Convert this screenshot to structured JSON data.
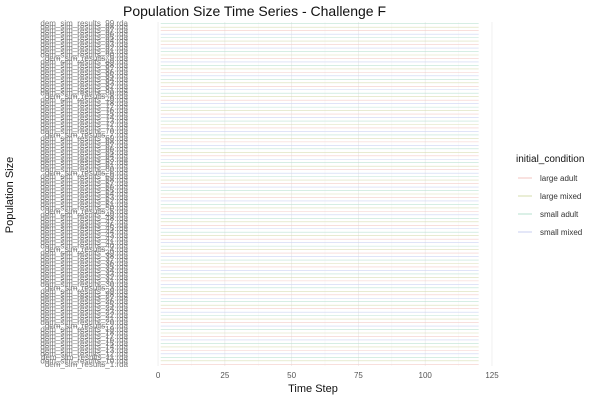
{
  "chart_data": {
    "type": "line",
    "title": "Population Size Time Series - Challenge F",
    "xlabel": "Time Step",
    "ylabel": "Population Size",
    "xlim": [
      -9,
      125
    ],
    "x_ticks": [
      "0",
      "25",
      "50",
      "75",
      "100",
      "125"
    ],
    "x_tick_values": [
      0,
      25,
      50,
      75,
      100,
      125
    ],
    "y_categories": [
      "dem_sim_results_1.rda",
      "dem_sim_results_10.rda",
      "dem_sim_results_11.rda",
      "dem_sim_results_12.rda",
      "dem_sim_results_13.rda",
      "dem_sim_results_14.rda",
      "dem_sim_results_15.rda",
      "dem_sim_results_16.rda",
      "dem_sim_results_17.rda",
      "dem_sim_results_18.rda",
      "dem_sim_results_19.rda",
      "dem_sim_results_2.rda",
      "dem_sim_results_20.rda",
      "dem_sim_results_21.rda",
      "dem_sim_results_22.rda",
      "dem_sim_results_23.rda",
      "dem_sim_results_24.rda",
      "dem_sim_results_25.rda",
      "dem_sim_results_26.rda",
      "dem_sim_results_27.rda",
      "dem_sim_results_28.rda",
      "dem_sim_results_29.rda",
      "dem_sim_results_3.rda",
      "dem_sim_results_30.rda",
      "dem_sim_results_31.rda",
      "dem_sim_results_32.rda",
      "dem_sim_results_33.rda",
      "dem_sim_results_34.rda",
      "dem_sim_results_35.rda",
      "dem_sim_results_36.rda",
      "dem_sim_results_37.rda",
      "dem_sim_results_38.rda",
      "dem_sim_results_39.rda",
      "dem_sim_results_4.rda",
      "dem_sim_results_40.rda",
      "dem_sim_results_41.rda",
      "dem_sim_results_42.rda",
      "dem_sim_results_43.rda",
      "dem_sim_results_44.rda",
      "dem_sim_results_45.rda",
      "dem_sim_results_46.rda",
      "dem_sim_results_47.rda",
      "dem_sim_results_48.rda",
      "dem_sim_results_49.rda",
      "dem_sim_results_5.rda",
      "dem_sim_results_50.rda",
      "dem_sim_results_51.rda",
      "dem_sim_results_52.rda",
      "dem_sim_results_53.rda",
      "dem_sim_results_54.rda",
      "dem_sim_results_55.rda",
      "dem_sim_results_56.rda",
      "dem_sim_results_57.rda",
      "dem_sim_results_58.rda",
      "dem_sim_results_59.rda",
      "dem_sim_results_6.rda",
      "dem_sim_results_60.rda",
      "dem_sim_results_61.rda",
      "dem_sim_results_62.rda",
      "dem_sim_results_63.rda",
      "dem_sim_results_64.rda",
      "dem_sim_results_65.rda",
      "dem_sim_results_66.rda",
      "dem_sim_results_67.rda",
      "dem_sim_results_68.rda",
      "dem_sim_results_69.rda",
      "dem_sim_results_7.rda",
      "dem_sim_results_70.rda",
      "dem_sim_results_71.rda",
      "dem_sim_results_72.rda",
      "dem_sim_results_73.rda",
      "dem_sim_results_74.rda",
      "dem_sim_results_75.rda",
      "dem_sim_results_76.rda",
      "dem_sim_results_77.rda",
      "dem_sim_results_78.rda",
      "dem_sim_results_79.rda",
      "dem_sim_results_8.rda",
      "dem_sim_results_80.rda",
      "dem_sim_results_81.rda",
      "dem_sim_results_82.rda",
      "dem_sim_results_83.rda",
      "dem_sim_results_84.rda",
      "dem_sim_results_85.rda",
      "dem_sim_results_86.rda",
      "dem_sim_results_87.rda",
      "dem_sim_results_88.rda",
      "dem_sim_results_89.rda",
      "dem_sim_results_9.rda",
      "dem_sim_results_90.rda",
      "dem_sim_results_91.rda",
      "dem_sim_results_92.rda",
      "dem_sim_results_93.rda",
      "dem_sim_results_94.rda",
      "dem_sim_results_95.rda",
      "dem_sim_results_96.rda",
      "dem_sim_results_97.rda",
      "dem_sim_results_98.rda",
      "dem_sim_results_99.rda"
    ],
    "line_x_range": [
      1,
      120
    ],
    "series": [
      {
        "name": "large adult",
        "color": "#f3c6c2"
      },
      {
        "name": "large mixed",
        "color": "#d6dcae"
      },
      {
        "name": "small adult",
        "color": "#b7e0cf"
      },
      {
        "name": "small mixed",
        "color": "#c9cff2"
      }
    ],
    "legend_title": "initial_condition",
    "legend_position": "right",
    "grid": true
  }
}
